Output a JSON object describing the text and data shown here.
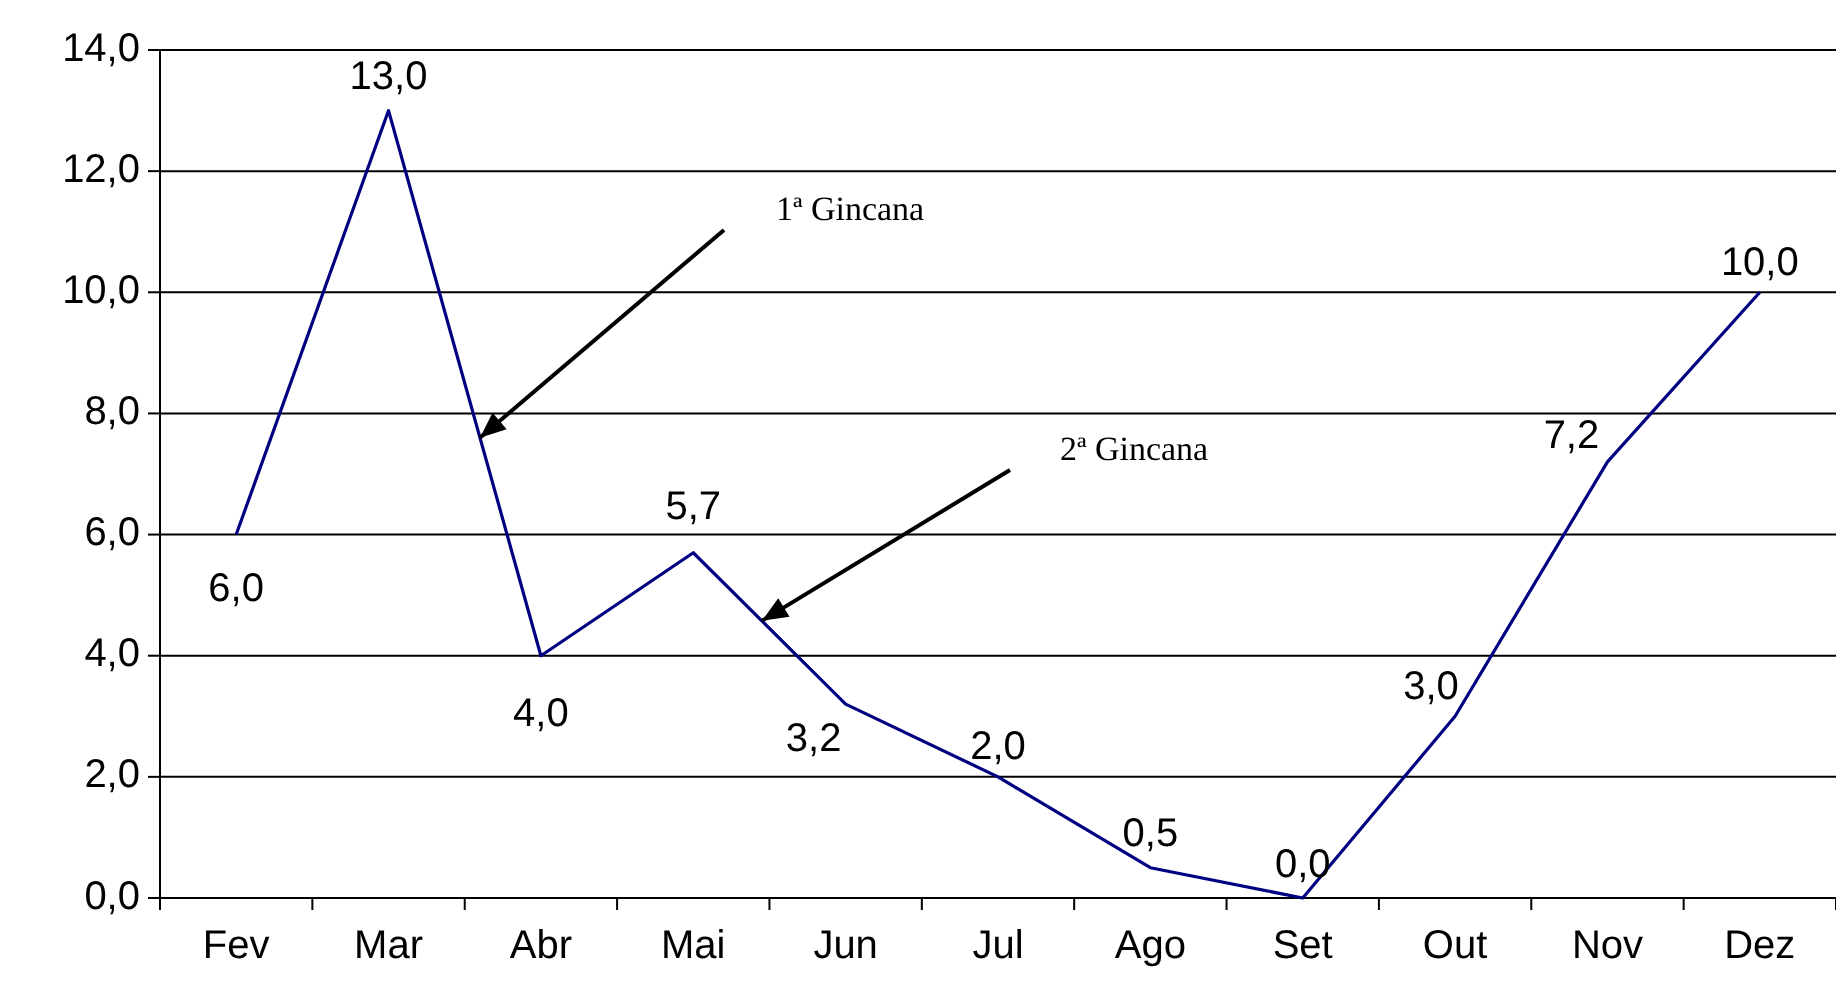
{
  "chart_data": {
    "type": "line",
    "categories": [
      "Fev",
      "Mar",
      "Abr",
      "Mai",
      "Jun",
      "Jul",
      "Ago",
      "Set",
      "Out",
      "Nov",
      "Dez"
    ],
    "series": [
      {
        "color": "#000080",
        "values": [
          6.0,
          13.0,
          4.0,
          5.7,
          3.2,
          2.0,
          0.5,
          0.0,
          3.0,
          7.2,
          10.0
        ],
        "value_labels": [
          "6,0",
          "13,0",
          "4,0",
          "5,7",
          "3,2",
          "2,0",
          "0,5",
          "0,0",
          "3,0",
          "7,2",
          "10,0"
        ]
      }
    ],
    "ylim": [
      0,
      14
    ],
    "yticks": [
      {
        "value": 0,
        "label": "0,0"
      },
      {
        "value": 2,
        "label": "2,0"
      },
      {
        "value": 4,
        "label": "4,0"
      },
      {
        "value": 6,
        "label": "6,0"
      },
      {
        "value": 8,
        "label": "8,0"
      },
      {
        "value": 10,
        "label": "10,0"
      },
      {
        "value": 12,
        "label": "12,0"
      },
      {
        "value": 14,
        "label": "14,0"
      }
    ],
    "grid": "y",
    "marker": "none",
    "line_style": "solid",
    "annotations": [
      "1ª Gincana",
      "2ª Gincana"
    ]
  }
}
